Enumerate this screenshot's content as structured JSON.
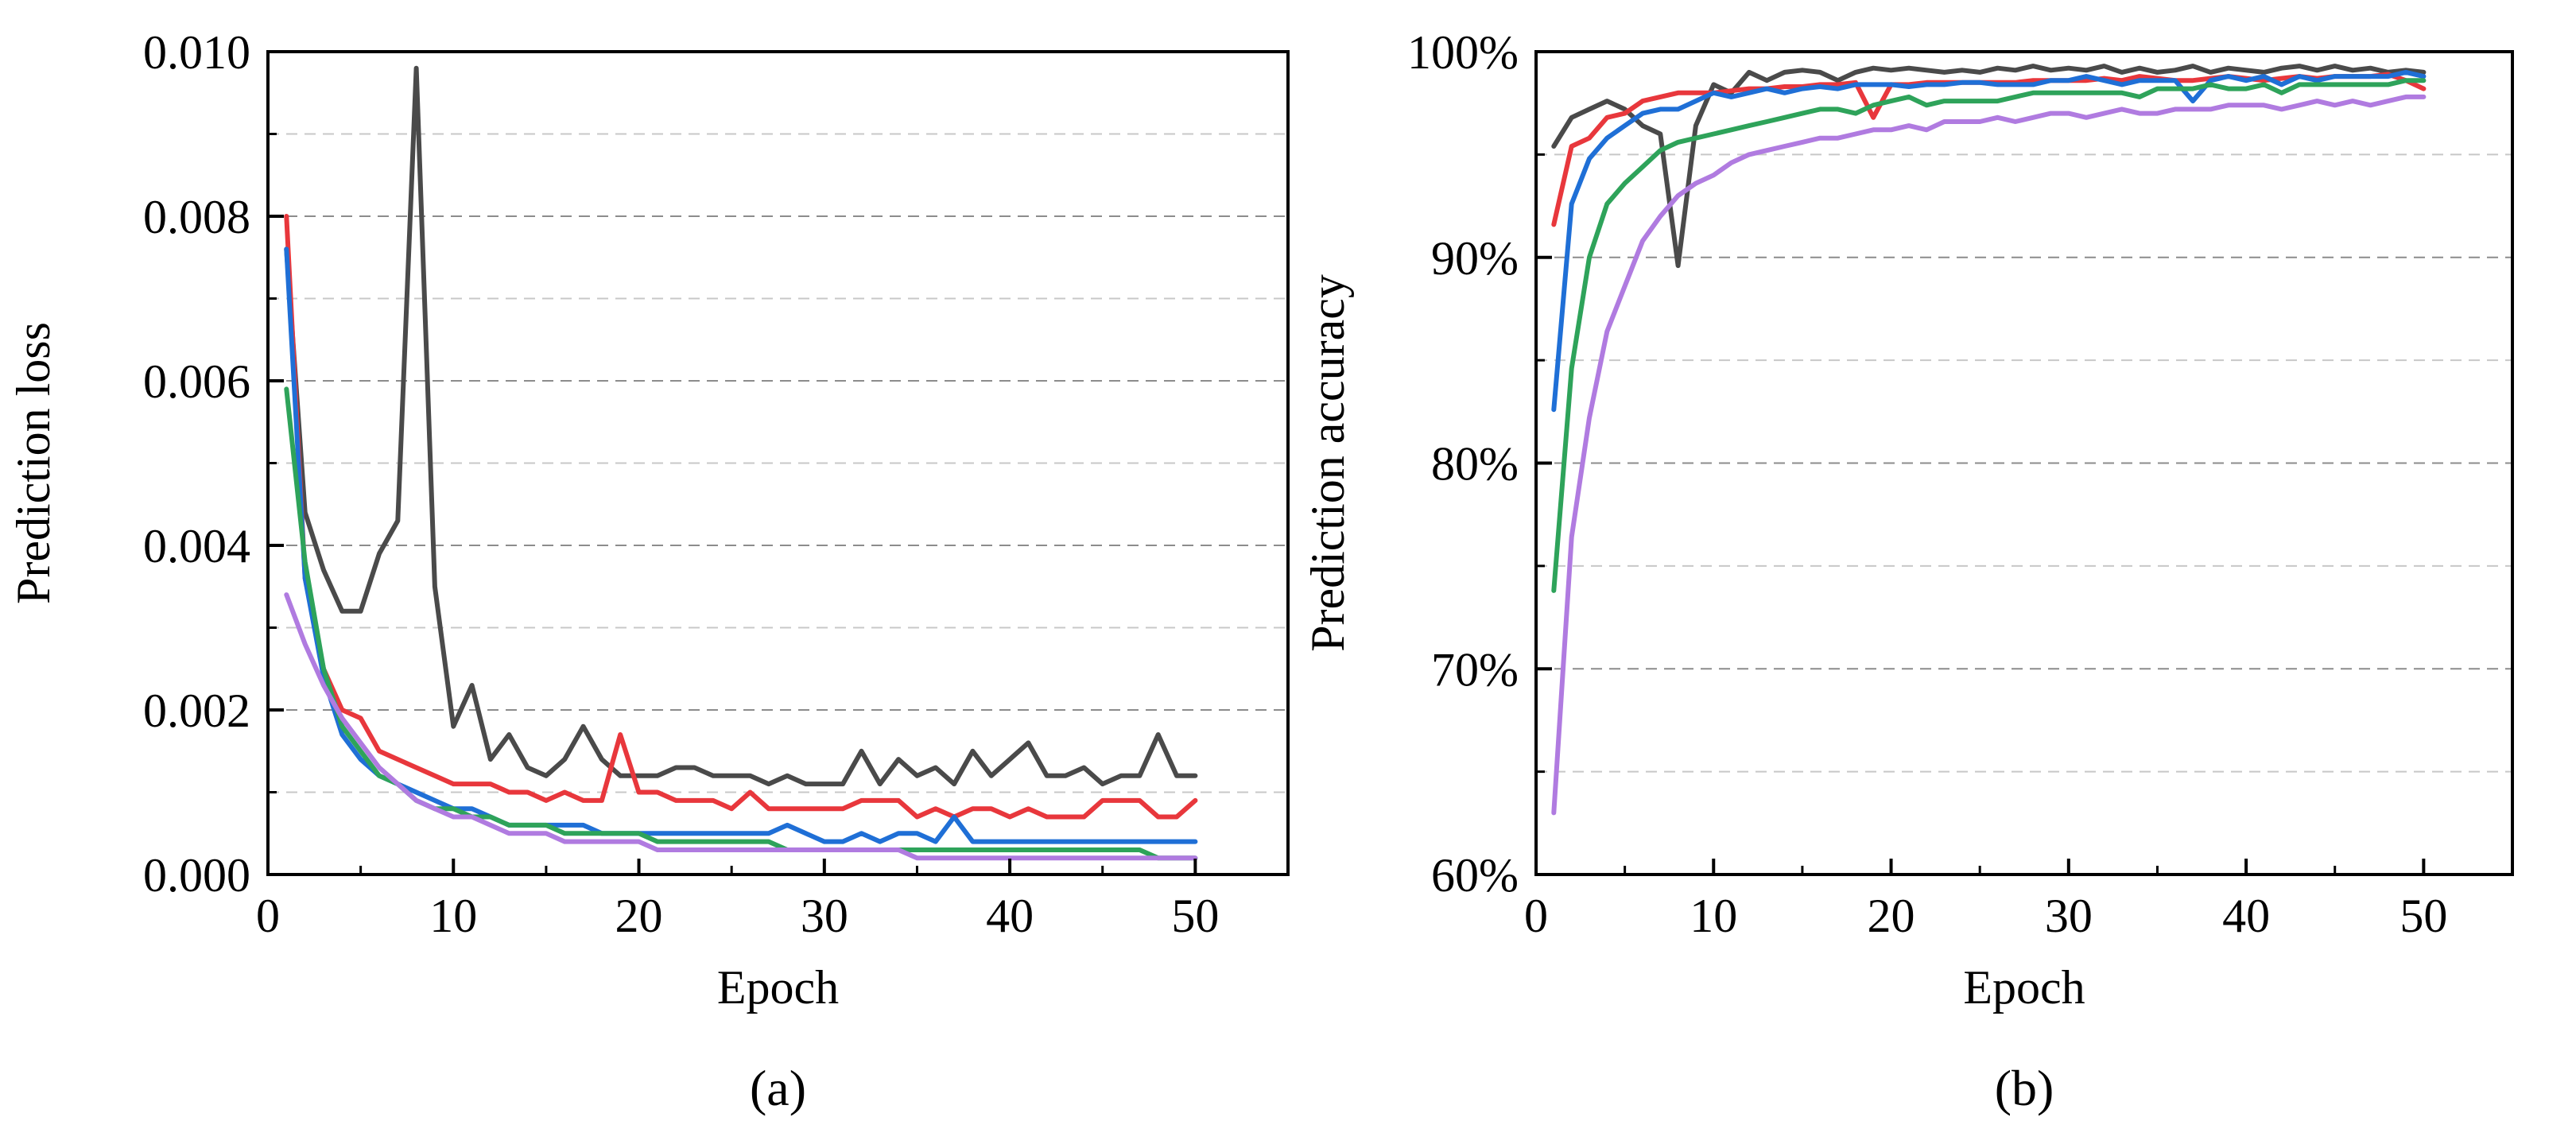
{
  "chart_data": [
    {
      "type": "line",
      "caption": "(a)",
      "xlabel": "Epoch",
      "ylabel": "Prediction loss",
      "xlim": [
        0,
        55
      ],
      "ylim": [
        0,
        0.01
      ],
      "xticks": [
        0,
        10,
        20,
        30,
        40,
        50
      ],
      "xtick_labels": [
        "0",
        "10",
        "20",
        "30",
        "40",
        "50"
      ],
      "yticks": [
        0,
        0.002,
        0.004,
        0.006,
        0.008,
        0.01
      ],
      "ytick_labels": [
        "0.000",
        "0.002",
        "0.004",
        "0.006",
        "0.008",
        "0.010"
      ],
      "grid": {
        "major": [
          0.002,
          0.004,
          0.006,
          0.008
        ],
        "minor": [
          0.001,
          0.003,
          0.005,
          0.007,
          0.009
        ]
      },
      "x": [
        1,
        2,
        3,
        4,
        5,
        6,
        7,
        8,
        9,
        10,
        11,
        12,
        13,
        14,
        15,
        16,
        17,
        18,
        19,
        20,
        21,
        22,
        23,
        24,
        25,
        26,
        27,
        28,
        29,
        30,
        31,
        32,
        33,
        34,
        35,
        36,
        37,
        38,
        39,
        40,
        41,
        42,
        43,
        44,
        45,
        46,
        47,
        48,
        49,
        50
      ],
      "series": [
        {
          "color": "#4a4a4a",
          "values": [
            0.0076,
            0.0044,
            0.0037,
            0.0032,
            0.0032,
            0.0039,
            0.0043,
            0.0098,
            0.0035,
            0.0018,
            0.0023,
            0.0014,
            0.0017,
            0.0013,
            0.0012,
            0.0014,
            0.0018,
            0.0014,
            0.0012,
            0.0012,
            0.0012,
            0.0013,
            0.0013,
            0.0012,
            0.0012,
            0.0012,
            0.0011,
            0.0012,
            0.0011,
            0.0011,
            0.0011,
            0.0015,
            0.0011,
            0.0014,
            0.0012,
            0.0013,
            0.0011,
            0.0015,
            0.0012,
            0.0014,
            0.0016,
            0.0012,
            0.0012,
            0.0013,
            0.0011,
            0.0012,
            0.0012,
            0.0017,
            0.0012,
            0.0012
          ]
        },
        {
          "color": "#e8373c",
          "values": [
            0.008,
            0.0036,
            0.0025,
            0.002,
            0.0019,
            0.0015,
            0.0014,
            0.0013,
            0.0012,
            0.0011,
            0.0011,
            0.0011,
            0.001,
            0.001,
            0.0009,
            0.001,
            0.0009,
            0.0009,
            0.0017,
            0.001,
            0.001,
            0.0009,
            0.0009,
            0.0009,
            0.0008,
            0.001,
            0.0008,
            0.0008,
            0.0008,
            0.0008,
            0.0008,
            0.0009,
            0.0009,
            0.0009,
            0.0007,
            0.0008,
            0.0007,
            0.0008,
            0.0008,
            0.0007,
            0.0008,
            0.0007,
            0.0007,
            0.0007,
            0.0009,
            0.0009,
            0.0009,
            0.0007,
            0.0007,
            0.0009
          ]
        },
        {
          "color": "#1f6fd6",
          "values": [
            0.0076,
            0.0036,
            0.0024,
            0.0017,
            0.0014,
            0.0012,
            0.0011,
            0.001,
            0.0009,
            0.0008,
            0.0008,
            0.0007,
            0.0006,
            0.0006,
            0.0006,
            0.0006,
            0.0006,
            0.0005,
            0.0005,
            0.0005,
            0.0005,
            0.0005,
            0.0005,
            0.0005,
            0.0005,
            0.0005,
            0.0005,
            0.0006,
            0.0005,
            0.0004,
            0.0004,
            0.0005,
            0.0004,
            0.0005,
            0.0005,
            0.0004,
            0.0007,
            0.0004,
            0.0004,
            0.0004,
            0.0004,
            0.0004,
            0.0004,
            0.0004,
            0.0004,
            0.0004,
            0.0004,
            0.0004,
            0.0004,
            0.0004
          ]
        },
        {
          "color": "#2ea35a",
          "values": [
            0.0059,
            0.0038,
            0.0025,
            0.0018,
            0.0015,
            0.0012,
            0.0011,
            0.0009,
            0.0008,
            0.0008,
            0.0007,
            0.0007,
            0.0006,
            0.0006,
            0.0006,
            0.0005,
            0.0005,
            0.0005,
            0.0005,
            0.0005,
            0.0004,
            0.0004,
            0.0004,
            0.0004,
            0.0004,
            0.0004,
            0.0004,
            0.0003,
            0.0003,
            0.0003,
            0.0003,
            0.0003,
            0.0003,
            0.0003,
            0.0003,
            0.0003,
            0.0003,
            0.0003,
            0.0003,
            0.0003,
            0.0003,
            0.0003,
            0.0003,
            0.0003,
            0.0003,
            0.0003,
            0.0003,
            0.0002,
            0.0002,
            0.0002
          ]
        },
        {
          "color": "#b07be0",
          "values": [
            0.0034,
            0.0028,
            0.0023,
            0.0019,
            0.0016,
            0.0013,
            0.0011,
            0.0009,
            0.0008,
            0.0007,
            0.0007,
            0.0006,
            0.0005,
            0.0005,
            0.0005,
            0.0004,
            0.0004,
            0.0004,
            0.0004,
            0.0004,
            0.0003,
            0.0003,
            0.0003,
            0.0003,
            0.0003,
            0.0003,
            0.0003,
            0.0003,
            0.0003,
            0.0003,
            0.0003,
            0.0003,
            0.0003,
            0.0003,
            0.0002,
            0.0002,
            0.0002,
            0.0002,
            0.0002,
            0.0002,
            0.0002,
            0.0002,
            0.0002,
            0.0002,
            0.0002,
            0.0002,
            0.0002,
            0.0002,
            0.0002,
            0.0002
          ]
        }
      ]
    },
    {
      "type": "line",
      "caption": "(b)",
      "xlabel": "Epoch",
      "ylabel": "Prediction accuracy",
      "xlim": [
        0,
        55
      ],
      "ylim": [
        60,
        100
      ],
      "xticks": [
        0,
        10,
        20,
        30,
        40,
        50
      ],
      "xtick_labels": [
        "0",
        "10",
        "20",
        "30",
        "40",
        "50"
      ],
      "yticks": [
        60,
        70,
        80,
        90,
        100
      ],
      "ytick_labels": [
        "60%",
        "70%",
        "80%",
        "90%",
        "100%"
      ],
      "grid": {
        "major": [
          70,
          80,
          90
        ],
        "minor": [
          65,
          75,
          85,
          95
        ]
      },
      "x": [
        1,
        2,
        3,
        4,
        5,
        6,
        7,
        8,
        9,
        10,
        11,
        12,
        13,
        14,
        15,
        16,
        17,
        18,
        19,
        20,
        21,
        22,
        23,
        24,
        25,
        26,
        27,
        28,
        29,
        30,
        31,
        32,
        33,
        34,
        35,
        36,
        37,
        38,
        39,
        40,
        41,
        42,
        43,
        44,
        45,
        46,
        47,
        48,
        49,
        50
      ],
      "series": [
        {
          "color": "#4a4a4a",
          "values": [
            95.4,
            96.8,
            97.2,
            97.6,
            97.2,
            96.4,
            96.0,
            89.6,
            96.4,
            98.4,
            98.0,
            99.0,
            98.6,
            99.0,
            99.1,
            99.0,
            98.6,
            99.0,
            99.2,
            99.1,
            99.2,
            99.1,
            99.0,
            99.1,
            99.0,
            99.2,
            99.1,
            99.3,
            99.1,
            99.2,
            99.1,
            99.3,
            99.0,
            99.2,
            99.0,
            99.1,
            99.3,
            99.0,
            99.2,
            99.1,
            99.0,
            99.2,
            99.3,
            99.1,
            99.3,
            99.1,
            99.2,
            99.0,
            99.1,
            99.0
          ]
        },
        {
          "color": "#e8373c",
          "values": [
            91.6,
            95.4,
            95.8,
            96.8,
            97.0,
            97.6,
            97.8,
            98.0,
            98.0,
            98.0,
            98.1,
            98.2,
            98.2,
            98.3,
            98.3,
            98.4,
            98.4,
            98.5,
            96.8,
            98.4,
            98.4,
            98.5,
            98.5,
            98.5,
            98.5,
            98.5,
            98.5,
            98.6,
            98.6,
            98.6,
            98.6,
            98.7,
            98.6,
            98.8,
            98.7,
            98.6,
            98.6,
            98.7,
            98.8,
            98.7,
            98.6,
            98.7,
            98.8,
            98.7,
            98.8,
            98.8,
            98.8,
            98.9,
            98.6,
            98.2
          ]
        },
        {
          "color": "#1f6fd6",
          "values": [
            82.6,
            92.6,
            94.8,
            95.8,
            96.4,
            97.0,
            97.2,
            97.2,
            97.6,
            98.0,
            97.8,
            98.0,
            98.2,
            98.0,
            98.2,
            98.3,
            98.2,
            98.4,
            98.4,
            98.4,
            98.3,
            98.4,
            98.4,
            98.5,
            98.5,
            98.4,
            98.4,
            98.4,
            98.6,
            98.6,
            98.8,
            98.6,
            98.4,
            98.6,
            98.6,
            98.6,
            97.6,
            98.6,
            98.8,
            98.6,
            98.8,
            98.4,
            98.8,
            98.6,
            98.8,
            98.8,
            98.8,
            98.8,
            99.0,
            98.8
          ]
        },
        {
          "color": "#2ea35a",
          "values": [
            73.8,
            84.6,
            90.0,
            92.6,
            93.6,
            94.4,
            95.2,
            95.6,
            95.8,
            96.0,
            96.2,
            96.4,
            96.6,
            96.8,
            97.0,
            97.2,
            97.2,
            97.0,
            97.4,
            97.6,
            97.8,
            97.4,
            97.6,
            97.6,
            97.6,
            97.6,
            97.8,
            98.0,
            98.0,
            98.0,
            98.0,
            98.0,
            98.0,
            97.8,
            98.2,
            98.2,
            98.2,
            98.4,
            98.2,
            98.2,
            98.4,
            98.0,
            98.4,
            98.4,
            98.4,
            98.4,
            98.4,
            98.4,
            98.6,
            98.6
          ]
        },
        {
          "color": "#b07be0",
          "values": [
            63.0,
            76.4,
            82.2,
            86.4,
            88.6,
            90.8,
            92.0,
            93.0,
            93.6,
            94.0,
            94.6,
            95.0,
            95.2,
            95.4,
            95.6,
            95.8,
            95.8,
            96.0,
            96.2,
            96.2,
            96.4,
            96.2,
            96.6,
            96.6,
            96.6,
            96.8,
            96.6,
            96.8,
            97.0,
            97.0,
            96.8,
            97.0,
            97.2,
            97.0,
            97.0,
            97.2,
            97.2,
            97.2,
            97.4,
            97.4,
            97.4,
            97.2,
            97.4,
            97.6,
            97.4,
            97.6,
            97.4,
            97.6,
            97.8,
            97.8
          ]
        }
      ]
    }
  ]
}
